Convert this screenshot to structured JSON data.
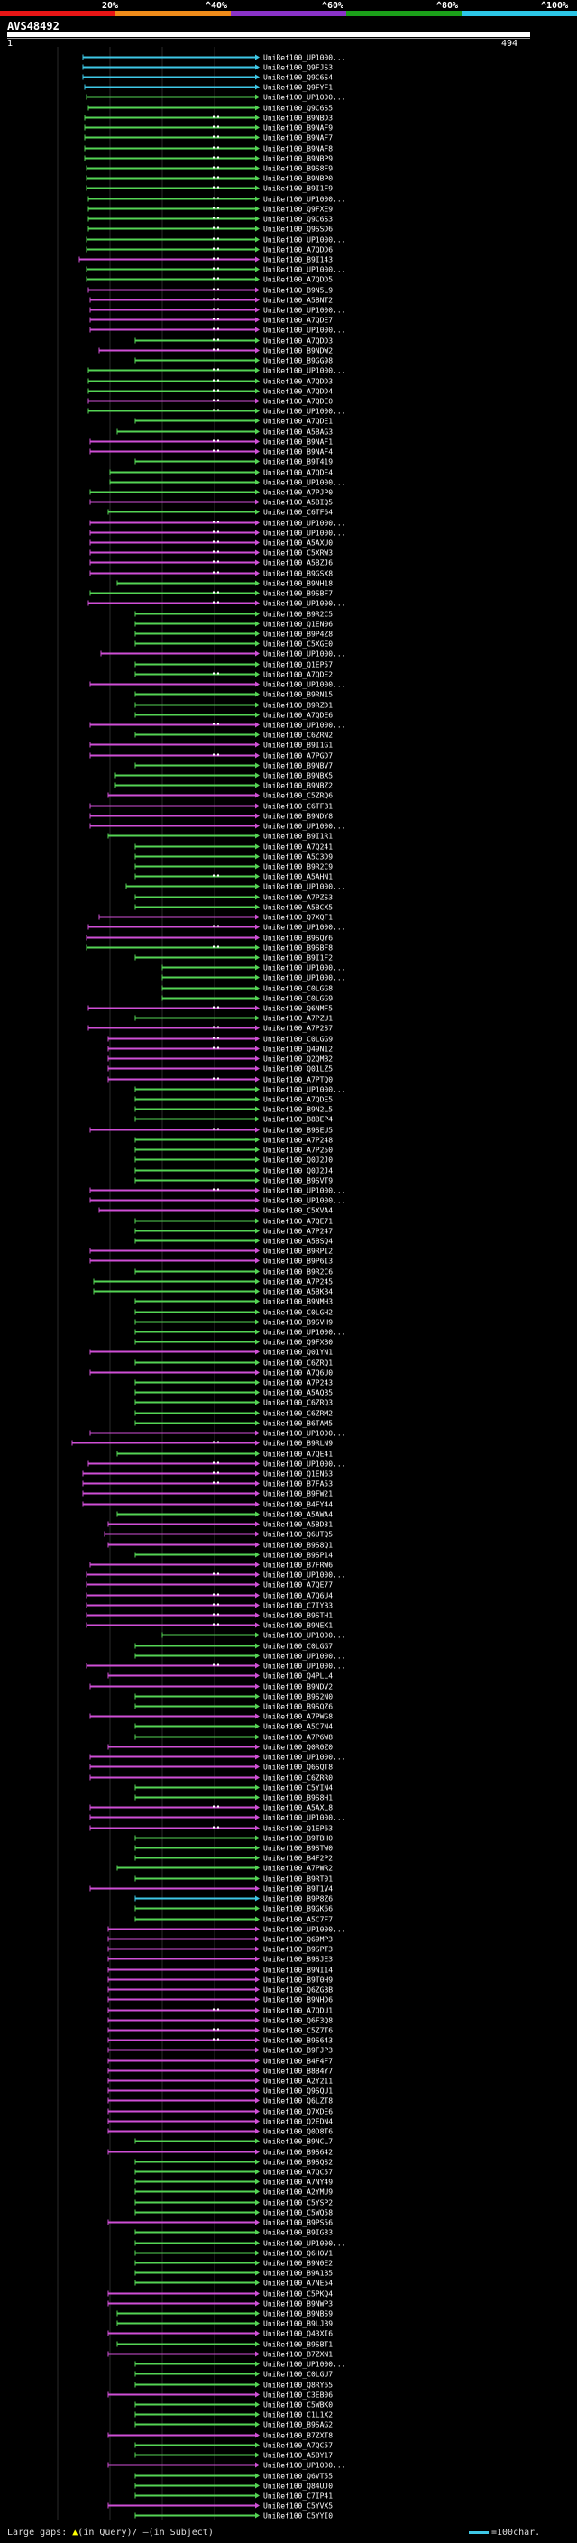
{
  "scale": {
    "ticks": [
      "20%",
      "^40%",
      "^60%",
      "^80%",
      "^100%"
    ],
    "colors": [
      "#e81515",
      "#f08c1a",
      "#8a33c8",
      "#1ba019",
      "#2cc6e6"
    ]
  },
  "query": {
    "id": "AVS48492",
    "start": "1",
    "end": "494"
  },
  "footer": {
    "large_gaps_label": "Large gaps:",
    "gap_query_mark": "▲",
    "gap_query_text": "(in Query)/",
    "gap_subject_mark": "–",
    "gap_subject_text": "(in Subject)",
    "legend_text": "=100char."
  },
  "palette": {
    "cyan": "#3ec7e6",
    "green": "#54d454",
    "magenta": "#cf4fd6"
  },
  "hits": [
    [
      "UniRef100_UP1000...",
      92,
      "cyan",
      0
    ],
    [
      "UniRef100_Q9FJS3",
      92,
      "cyan",
      0
    ],
    [
      "UniRef100_Q9C6S4",
      92,
      "cyan",
      0
    ],
    [
      "UniRef100_Q9FYF1",
      94,
      "cyan",
      0
    ],
    [
      "UniRef100_UP1000...",
      96,
      "green",
      0
    ],
    [
      "UniRef100_Q9C6S5",
      98,
      "green",
      0
    ],
    [
      "UniRef100_B9NBD3",
      94,
      "green",
      1
    ],
    [
      "UniRef100_B9NAF9",
      94,
      "green",
      1
    ],
    [
      "UniRef100_B9NAF7",
      94,
      "green",
      1
    ],
    [
      "UniRef100_B9NAF8",
      94,
      "green",
      1
    ],
    [
      "UniRef100_B9NBP9",
      94,
      "green",
      1
    ],
    [
      "UniRef100_B9S8F9",
      96,
      "green",
      1
    ],
    [
      "UniRef100_B9NBP0",
      96,
      "green",
      1
    ],
    [
      "UniRef100_B9I1F9",
      96,
      "green",
      1
    ],
    [
      "UniRef100_UP1000...",
      98,
      "green",
      1
    ],
    [
      "UniRef100_Q9FXE9",
      98,
      "green",
      1
    ],
    [
      "UniRef100_Q9C6S3",
      98,
      "green",
      1
    ],
    [
      "UniRef100_Q9SSD6",
      98,
      "green",
      1
    ],
    [
      "UniRef100_UP1000...",
      96,
      "green",
      1
    ],
    [
      "UniRef100_A7QDD6",
      96,
      "green",
      1
    ],
    [
      "UniRef100_B9I143",
      88,
      "magenta",
      1
    ],
    [
      "UniRef100_UP1000...",
      96,
      "green",
      1
    ],
    [
      "UniRef100_A7QDD5",
      96,
      "green",
      1
    ],
    [
      "UniRef100_B9N5L9",
      98,
      "magenta",
      1
    ],
    [
      "UniRef100_A5BNT2",
      100,
      "magenta",
      1
    ],
    [
      "UniRef100_UP1000...",
      100,
      "magenta",
      1
    ],
    [
      "UniRef100_A7QDE7",
      100,
      "magenta",
      1
    ],
    [
      "UniRef100_UP1000...",
      100,
      "magenta",
      1
    ],
    [
      "UniRef100_A7QDD3",
      150,
      "green",
      1
    ],
    [
      "UniRef100_B9NDW2",
      110,
      "magenta",
      1
    ],
    [
      "UniRef100_B9GG98",
      150,
      "green",
      0
    ],
    [
      "UniRef100_UP1000...",
      98,
      "green",
      1
    ],
    [
      "UniRef100_A7QDD3",
      98,
      "green",
      1
    ],
    [
      "UniRef100_A7QDD4",
      98,
      "green",
      1
    ],
    [
      "UniRef100_A7QDE0",
      98,
      "magenta",
      1
    ],
    [
      "UniRef100_UP1000...",
      98,
      "green",
      1
    ],
    [
      "UniRef100_A7QDE1",
      150,
      "green",
      0
    ],
    [
      "UniRef100_A5BAG3",
      130,
      "green",
      0
    ],
    [
      "UniRef100_B9NAF1",
      100,
      "magenta",
      1
    ],
    [
      "UniRef100_B9NAF4",
      100,
      "magenta",
      1
    ],
    [
      "UniRef100_B9T419",
      150,
      "green",
      0
    ],
    [
      "UniRef100_A7QDE4",
      122,
      "green",
      0
    ],
    [
      "UniRef100_UP1000...",
      122,
      "green",
      0
    ],
    [
      "UniRef100_A7PJP0",
      100,
      "green",
      0
    ],
    [
      "UniRef100_A5BIQ5",
      100,
      "magenta",
      0
    ],
    [
      "UniRef100_C6TF64",
      120,
      "green",
      0
    ],
    [
      "UniRef100_UP1000...",
      100,
      "magenta",
      1
    ],
    [
      "UniRef100_UP1000...",
      100,
      "magenta",
      1
    ],
    [
      "UniRef100_A5AXU0",
      100,
      "magenta",
      1
    ],
    [
      "UniRef100_C5XRW3",
      100,
      "magenta",
      1
    ],
    [
      "UniRef100_A5BZJ6",
      100,
      "magenta",
      1
    ],
    [
      "UniRef100_B9GSX8",
      100,
      "magenta",
      1
    ],
    [
      "UniRef100_B9NH18",
      130,
      "green",
      0
    ],
    [
      "UniRef100_B9SBF7",
      100,
      "green",
      1
    ],
    [
      "UniRef100_UP1000...",
      98,
      "magenta",
      1
    ],
    [
      "UniRef100_B9R2C5",
      150,
      "green",
      0
    ],
    [
      "UniRef100_Q1EN06",
      150,
      "green",
      0
    ],
    [
      "UniRef100_B9P4Z8",
      150,
      "green",
      0
    ],
    [
      "UniRef100_C5XGE0",
      150,
      "green",
      0
    ],
    [
      "UniRef100_UP1000...",
      112,
      "magenta",
      0
    ],
    [
      "UniRef100_Q1EP57",
      150,
      "green",
      0
    ],
    [
      "UniRef100_A7QDE2",
      150,
      "green",
      1
    ],
    [
      "UniRef100_UP1000...",
      100,
      "magenta",
      0
    ],
    [
      "UniRef100_B9RN15",
      150,
      "green",
      0
    ],
    [
      "UniRef100_B9RZD1",
      150,
      "green",
      0
    ],
    [
      "UniRef100_A7QDE6",
      150,
      "green",
      0
    ],
    [
      "UniRef100_UP1000...",
      100,
      "magenta",
      1
    ],
    [
      "UniRef100_C6ZRN2",
      150,
      "green",
      0
    ],
    [
      "UniRef100_B9I1G1",
      100,
      "magenta",
      0
    ],
    [
      "UniRef100_A7PGD7",
      100,
      "magenta",
      1
    ],
    [
      "UniRef100_B9NBV7",
      150,
      "green",
      0
    ],
    [
      "UniRef100_B9NBX5",
      128,
      "green",
      0
    ],
    [
      "UniRef100_B9NBZ2",
      128,
      "green",
      0
    ],
    [
      "UniRef100_C5ZRQ6",
      120,
      "magenta",
      0
    ],
    [
      "UniRef100_C6TFB1",
      100,
      "magenta",
      0
    ],
    [
      "UniRef100_B9NDY8",
      100,
      "magenta",
      0
    ],
    [
      "UniRef100_UP1000...",
      100,
      "magenta",
      0
    ],
    [
      "UniRef100_B9I1R1",
      120,
      "green",
      0
    ],
    [
      "UniRef100_A7Q241",
      150,
      "green",
      0
    ],
    [
      "UniRef100_A5C3D9",
      150,
      "green",
      0
    ],
    [
      "UniRef100_B9R2C9",
      150,
      "green",
      0
    ],
    [
      "UniRef100_A5AHN1",
      150,
      "green",
      1
    ],
    [
      "UniRef100_UP1000...",
      140,
      "green",
      0
    ],
    [
      "UniRef100_A7PZS3",
      150,
      "green",
      0
    ],
    [
      "UniRef100_A5BCX5",
      150,
      "green",
      0
    ],
    [
      "UniRef100_Q7XQF1",
      110,
      "magenta",
      0
    ],
    [
      "UniRef100_UP1000...",
      98,
      "magenta",
      1
    ],
    [
      "UniRef100_B9SQY6",
      96,
      "magenta",
      0
    ],
    [
      "UniRef100_B9SBF8",
      96,
      "green",
      1
    ],
    [
      "UniRef100_B9I1F2",
      150,
      "green",
      0
    ],
    [
      "UniRef100_UP1000...",
      180,
      "green",
      0
    ],
    [
      "UniRef100_UP1000...",
      180,
      "green",
      0
    ],
    [
      "UniRef100_C0LGG8",
      180,
      "green",
      0
    ],
    [
      "UniRef100_C0LGG9",
      180,
      "green",
      0
    ],
    [
      "UniRef100_Q6NMF5",
      98,
      "magenta",
      1
    ],
    [
      "UniRef100_A7PZU1",
      150,
      "green",
      0
    ],
    [
      "UniRef100_A7P2S7",
      98,
      "magenta",
      1
    ],
    [
      "UniRef100_C0LGG9",
      120,
      "magenta",
      1
    ],
    [
      "UniRef100_Q49N12",
      120,
      "magenta",
      1
    ],
    [
      "UniRef100_Q2QMB2",
      120,
      "magenta",
      0
    ],
    [
      "UniRef100_Q01LZ5",
      120,
      "magenta",
      0
    ],
    [
      "UniRef100_A7PTQ0",
      120,
      "magenta",
      1
    ],
    [
      "UniRef100_UP1000...",
      150,
      "green",
      0
    ],
    [
      "UniRef100_A7QDE5",
      150,
      "green",
      0
    ],
    [
      "UniRef100_B9N2L5",
      150,
      "green",
      0
    ],
    [
      "UniRef100_B8BEP4",
      150,
      "green",
      0
    ],
    [
      "UniRef100_B9SEU5",
      100,
      "magenta",
      1
    ],
    [
      "UniRef100_A7P248",
      150,
      "green",
      0
    ],
    [
      "UniRef100_A7P250",
      150,
      "green",
      0
    ],
    [
      "UniRef100_Q0J2J0",
      150,
      "green",
      0
    ],
    [
      "UniRef100_Q0J2J4",
      150,
      "green",
      0
    ],
    [
      "UniRef100_B9SVT9",
      150,
      "green",
      0
    ],
    [
      "UniRef100_UP1000...",
      100,
      "magenta",
      1
    ],
    [
      "UniRef100_UP1000...",
      100,
      "magenta",
      0
    ],
    [
      "UniRef100_C5XVA4",
      110,
      "magenta",
      0
    ],
    [
      "UniRef100_A7QE71",
      150,
      "green",
      0
    ],
    [
      "UniRef100_A7P247",
      150,
      "green",
      0
    ],
    [
      "UniRef100_A5BSQ4",
      150,
      "green",
      0
    ],
    [
      "UniRef100_B9RPI2",
      100,
      "magenta",
      0
    ],
    [
      "UniRef100_B9P6I3",
      100,
      "magenta",
      0
    ],
    [
      "UniRef100_B9R2C6",
      150,
      "green",
      0
    ],
    [
      "UniRef100_A7P245",
      104,
      "green",
      0
    ],
    [
      "UniRef100_A5BKB4",
      104,
      "green",
      0
    ],
    [
      "UniRef100_B9NMH3",
      150,
      "green",
      0
    ],
    [
      "UniRef100_C0LGH2",
      150,
      "green",
      0
    ],
    [
      "UniRef100_B9SVH9",
      150,
      "green",
      0
    ],
    [
      "UniRef100_UP1000...",
      150,
      "green",
      0
    ],
    [
      "UniRef100_Q9FXB0",
      150,
      "green",
      0
    ],
    [
      "UniRef100_Q01YN1",
      100,
      "magenta",
      0
    ],
    [
      "UniRef100_C6ZRQ1",
      150,
      "green",
      0
    ],
    [
      "UniRef100_A7Q6U0",
      100,
      "magenta",
      0
    ],
    [
      "UniRef100_A7P243",
      150,
      "green",
      0
    ],
    [
      "UniRef100_A5AQB5",
      150,
      "green",
      0
    ],
    [
      "UniRef100_C6ZRQ3",
      150,
      "green",
      0
    ],
    [
      "UniRef100_C6ZRM2",
      150,
      "green",
      0
    ],
    [
      "UniRef100_B6TAM5",
      150,
      "green",
      0
    ],
    [
      "UniRef100_UP1000...",
      100,
      "magenta",
      0
    ],
    [
      "UniRef100_B9RLN9",
      80,
      "magenta",
      1
    ],
    [
      "UniRef100_A7QE41",
      130,
      "green",
      0
    ],
    [
      "UniRef100_UP1000...",
      98,
      "magenta",
      1
    ],
    [
      "UniRef100_Q1EN63",
      92,
      "magenta",
      1
    ],
    [
      "UniRef100_B7FA53",
      92,
      "magenta",
      1
    ],
    [
      "UniRef100_B9FW21",
      92,
      "magenta",
      0
    ],
    [
      "UniRef100_B4FY44",
      92,
      "magenta",
      0
    ],
    [
      "UniRef100_A5AWA4",
      130,
      "green",
      0
    ],
    [
      "UniRef100_A5BD31",
      120,
      "magenta",
      0
    ],
    [
      "UniRef100_Q6UTQ5",
      116,
      "magenta",
      0
    ],
    [
      "UniRef100_B9S8Q1",
      120,
      "magenta",
      0
    ],
    [
      "UniRef100_B9SP14",
      150,
      "green",
      0
    ],
    [
      "UniRef100_B7FRW6",
      100,
      "magenta",
      0
    ],
    [
      "UniRef100_UP1000...",
      96,
      "magenta",
      1
    ],
    [
      "UniRef100_A7QE77",
      96,
      "magenta",
      0
    ],
    [
      "UniRef100_A7Q6U4",
      96,
      "magenta",
      1
    ],
    [
      "UniRef100_C7IYB3",
      96,
      "magenta",
      1
    ],
    [
      "UniRef100_B9STH1",
      96,
      "magenta",
      1
    ],
    [
      "UniRef100_B9NEK1",
      96,
      "magenta",
      1
    ],
    [
      "UniRef100_UP1000...",
      180,
      "green",
      0
    ],
    [
      "UniRef100_C0LGG7",
      150,
      "green",
      0
    ],
    [
      "UniRef100_UP1000...",
      150,
      "green",
      0
    ],
    [
      "UniRef100_UP1000...",
      96,
      "magenta",
      1
    ],
    [
      "UniRef100_Q4PLL4",
      120,
      "magenta",
      0
    ],
    [
      "UniRef100_B9NDV2",
      100,
      "magenta",
      0
    ],
    [
      "UniRef100_B9S2N0",
      150,
      "green",
      0
    ],
    [
      "UniRef100_B9SQZ6",
      150,
      "green",
      0
    ],
    [
      "UniRef100_A7PWG8",
      100,
      "magenta",
      0
    ],
    [
      "UniRef100_A5C7N4",
      150,
      "green",
      0
    ],
    [
      "UniRef100_A7P6W8",
      150,
      "green",
      0
    ],
    [
      "UniRef100_Q0R0Z0",
      120,
      "magenta",
      0
    ],
    [
      "UniRef100_UP1000...",
      100,
      "magenta",
      0
    ],
    [
      "UniRef100_Q6SQT8",
      100,
      "magenta",
      0
    ],
    [
      "UniRef100_C6ZRR0",
      100,
      "magenta",
      0
    ],
    [
      "UniRef100_C5YIN4",
      150,
      "green",
      0
    ],
    [
      "UniRef100_B9S8H1",
      150,
      "green",
      0
    ],
    [
      "UniRef100_A5AXL8",
      100,
      "magenta",
      1
    ],
    [
      "UniRef100_UP1000...",
      100,
      "magenta",
      0
    ],
    [
      "UniRef100_Q1EP63",
      100,
      "magenta",
      1
    ],
    [
      "UniRef100_B9TBH0",
      150,
      "green",
      0
    ],
    [
      "UniRef100_B9STW0",
      150,
      "green",
      0
    ],
    [
      "UniRef100_B4F2P2",
      150,
      "green",
      0
    ],
    [
      "UniRef100_A7PWR2",
      130,
      "green",
      0
    ],
    [
      "UniRef100_B9RT01",
      150,
      "green",
      0
    ],
    [
      "UniRef100_B9T1V4",
      100,
      "magenta",
      0
    ],
    [
      "UniRef100_B9P8Z6",
      150,
      "cyan",
      0
    ],
    [
      "UniRef100_B9GK66",
      150,
      "green",
      0
    ],
    [
      "UniRef100_A5C7F7",
      150,
      "green",
      0
    ],
    [
      "UniRef100_UP1000...",
      120,
      "magenta",
      0
    ],
    [
      "UniRef100_Q69MP3",
      120,
      "magenta",
      0
    ],
    [
      "UniRef100_B9SPT3",
      120,
      "magenta",
      0
    ],
    [
      "UniRef100_B9SJE3",
      120,
      "magenta",
      0
    ],
    [
      "UniRef100_B9NI14",
      120,
      "magenta",
      0
    ],
    [
      "UniRef100_B9T0H9",
      120,
      "magenta",
      0
    ],
    [
      "UniRef100_Q6ZGBB",
      120,
      "magenta",
      0
    ],
    [
      "UniRef100_B9NHD6",
      120,
      "magenta",
      0
    ],
    [
      "UniRef100_A7QDU1",
      120,
      "magenta",
      1
    ],
    [
      "UniRef100_Q6F3Q8",
      120,
      "magenta",
      0
    ],
    [
      "UniRef100_C5Z7T6",
      120,
      "magenta",
      1
    ],
    [
      "UniRef100_B9S643",
      120,
      "magenta",
      1
    ],
    [
      "UniRef100_B9FJP3",
      120,
      "magenta",
      0
    ],
    [
      "UniRef100_B4F4F7",
      120,
      "magenta",
      0
    ],
    [
      "UniRef100_B8B4Y7",
      120,
      "magenta",
      0
    ],
    [
      "UniRef100_A2Y211",
      120,
      "magenta",
      0
    ],
    [
      "UniRef100_Q9SQU1",
      120,
      "magenta",
      0
    ],
    [
      "UniRef100_Q6LZT8",
      120,
      "magenta",
      0
    ],
    [
      "UniRef100_Q7XDE6",
      120,
      "magenta",
      0
    ],
    [
      "UniRef100_Q2EDN4",
      120,
      "magenta",
      0
    ],
    [
      "UniRef100_Q0D8T6",
      120,
      "magenta",
      0
    ],
    [
      "UniRef100_B9NCL7",
      150,
      "green",
      0
    ],
    [
      "UniRef100_B9S642",
      120,
      "magenta",
      0
    ],
    [
      "UniRef100_B9SQS2",
      150,
      "green",
      0
    ],
    [
      "UniRef100_A7QC57",
      150,
      "green",
      0
    ],
    [
      "UniRef100_A7NY49",
      150,
      "green",
      0
    ],
    [
      "UniRef100_A2YMU9",
      150,
      "green",
      0
    ],
    [
      "UniRef100_C5YSP2",
      150,
      "green",
      0
    ],
    [
      "UniRef100_C5WQ58",
      150,
      "green",
      0
    ],
    [
      "UniRef100_B9PS56",
      120,
      "magenta",
      0
    ],
    [
      "UniRef100_B9IG83",
      150,
      "green",
      0
    ],
    [
      "UniRef100_UP1000...",
      150,
      "green",
      0
    ],
    [
      "UniRef100_Q6H0V1",
      150,
      "green",
      0
    ],
    [
      "UniRef100_B9N0E2",
      150,
      "green",
      0
    ],
    [
      "UniRef100_B9A1B5",
      150,
      "green",
      0
    ],
    [
      "UniRef100_A7NE54",
      150,
      "green",
      0
    ],
    [
      "UniRef100_C5PKQ4",
      120,
      "magenta",
      0
    ],
    [
      "UniRef100_B9NWP3",
      120,
      "magenta",
      0
    ],
    [
      "UniRef100_B9NBS9",
      130,
      "green",
      0
    ],
    [
      "UniRef100_B9LJB9",
      130,
      "green",
      0
    ],
    [
      "UniRef100_Q43XI6",
      120,
      "magenta",
      0
    ],
    [
      "UniRef100_B9SBT1",
      130,
      "green",
      0
    ],
    [
      "UniRef100_B7ZXN1",
      120,
      "magenta",
      0
    ],
    [
      "UniRef100_UP1000...",
      150,
      "green",
      0
    ],
    [
      "UniRef100_C0LGU7",
      150,
      "green",
      0
    ],
    [
      "UniRef100_Q8RY65",
      150,
      "green",
      0
    ],
    [
      "UniRef100_C3EB06",
      120,
      "magenta",
      0
    ],
    [
      "UniRef100_C5WBK0",
      150,
      "green",
      0
    ],
    [
      "UniRef100_C1L1X2",
      150,
      "green",
      0
    ],
    [
      "UniRef100_B9SAG2",
      150,
      "green",
      0
    ],
    [
      "UniRef100_B7ZXT8",
      120,
      "magenta",
      0
    ],
    [
      "UniRef100_A7QC57",
      150,
      "green",
      0
    ],
    [
      "UniRef100_A5BY17",
      150,
      "green",
      0
    ],
    [
      "UniRef100_UP1000...",
      120,
      "magenta",
      0
    ],
    [
      "UniRef100_Q6VT55",
      150,
      "green",
      0
    ],
    [
      "UniRef100_Q84UJ0",
      150,
      "green",
      0
    ],
    [
      "UniRef100_C7IP41",
      150,
      "green",
      0
    ],
    [
      "UniRef100_C5YVX5",
      120,
      "magenta",
      0
    ],
    [
      "UniRef100_C5YYI0",
      150,
      "green",
      0
    ]
  ]
}
